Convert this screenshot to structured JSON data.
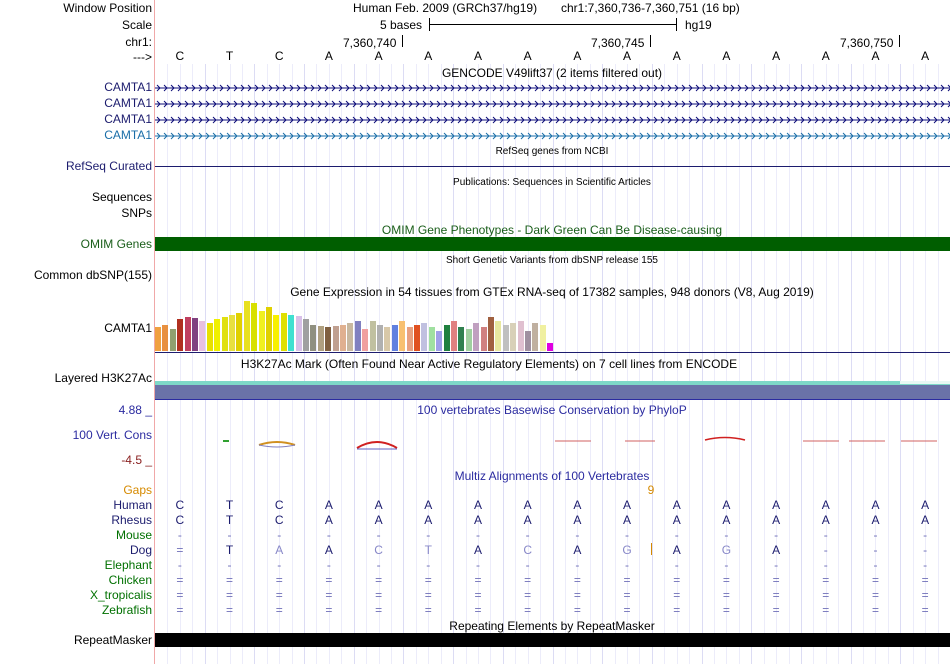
{
  "labels": {
    "window_position": "Window Position",
    "scale": "Scale",
    "chrom": "chr1:",
    "arrow": "--->",
    "camta1_rows": [
      "CAMTA1",
      "CAMTA1",
      "CAMTA1",
      "CAMTA1"
    ],
    "refseq": "RefSeq Curated",
    "sequences": "Sequences",
    "snps": "SNPs",
    "omim": "OMIM Genes",
    "dbsnp": "Common dbSNP(155)",
    "gtex": "CAMTA1",
    "h3k27ac": "Layered H3K27Ac",
    "cons_max": "4.88 _",
    "cons": "100 Vert. Cons",
    "cons_min": "-4.5 _",
    "gaps": "Gaps",
    "species": [
      "Human",
      "Rhesus",
      "Mouse",
      "Dog",
      "Elephant",
      "Chicken",
      "X_tropicalis",
      "Zebrafish"
    ],
    "repeatmasker": "RepeatMasker"
  },
  "header": {
    "assembly": "Human Feb. 2009 (GRCh37/hg19)",
    "position": "chr1:7,360,736-7,360,751 (16 bp)",
    "scale_left": "5 bases",
    "scale_right": "hg19",
    "ticks": [
      "7,360,740",
      "7,360,745",
      "7,360,750"
    ]
  },
  "sequence": [
    "C",
    "T",
    "C",
    "A",
    "A",
    "A",
    "A",
    "A",
    "A",
    "A",
    "A",
    "A",
    "A",
    "A",
    "A",
    "A"
  ],
  "tracks": {
    "gencode": "GENCODE V49lift37 (2 items filtered out)",
    "refseq": "RefSeq genes from NCBI",
    "pubs": "Publications: Sequences in Scientific Articles",
    "omim": "OMIM Gene Phenotypes - Dark Green Can Be Disease-causing",
    "dbsnp": "Short Genetic Variants from dbSNP release 155",
    "gtex": "Gene Expression in 54 tissues from GTEx RNA-seq of 17382 samples, 948 donors (V8, Aug 2019)",
    "h3k27ac": "H3K27Ac Mark (Often Found Near Active Regulatory Elements) on 7 cell lines from ENCODE",
    "phylop": "100 vertebrates Basewise Conservation by PhyloP",
    "multiz": "Multiz Alignments of 100 Vertebrates",
    "repeatmasker": "Repeating Elements by RepeatMasker",
    "gap_marker": "9"
  },
  "alignments": [
    [
      "C",
      "T",
      "C",
      "A",
      "A",
      "A",
      "A",
      "A",
      "A",
      "A",
      "A",
      "A",
      "A",
      "A",
      "A",
      "A"
    ],
    [
      "C",
      "T",
      "C",
      "A",
      "A",
      "A",
      "A",
      "A",
      "A",
      "A",
      "A",
      "A",
      "A",
      "A",
      "A",
      "A"
    ],
    [
      "-",
      "-",
      "-",
      "-",
      "-",
      "-",
      "-",
      "-",
      "-",
      "-",
      "-",
      "-",
      "-",
      "-",
      "-",
      "-"
    ],
    [
      "=",
      "T",
      "A",
      "A",
      "C",
      "T",
      "A",
      "C",
      "A",
      "G",
      "A",
      "G",
      "A",
      "-",
      "-",
      "-"
    ],
    [
      "-",
      "-",
      "-",
      "-",
      "-",
      "-",
      "-",
      "-",
      "-",
      "-",
      "-",
      "-",
      "-",
      "-",
      "-",
      "-"
    ],
    [
      "=",
      "=",
      "=",
      "=",
      "=",
      "=",
      "=",
      "=",
      "=",
      "=",
      "=",
      "=",
      "=",
      "=",
      "=",
      "="
    ],
    [
      "=",
      "=",
      "=",
      "=",
      "=",
      "=",
      "=",
      "=",
      "=",
      "=",
      "=",
      "=",
      "=",
      "=",
      "=",
      "="
    ],
    [
      "=",
      "=",
      "=",
      "=",
      "=",
      "=",
      "=",
      "=",
      "=",
      "=",
      "=",
      "=",
      "=",
      "=",
      "=",
      "="
    ]
  ],
  "gtex_values": [
    24,
    26,
    22,
    32,
    34,
    33,
    30,
    28,
    32,
    34,
    36,
    38,
    50,
    48,
    40,
    44,
    36,
    38,
    36,
    35,
    32,
    26,
    25,
    24,
    25,
    26,
    28,
    30,
    22,
    30,
    26,
    24,
    26,
    30,
    24,
    26,
    28,
    24,
    20,
    26,
    30,
    24,
    22,
    28,
    24,
    34,
    30,
    26,
    28,
    30,
    20,
    28,
    26,
    8
  ],
  "colors": {
    "camta_dark": "#0c0c78",
    "camta_light": "#1a6ea8",
    "omim_green": "#005e00",
    "omim_text": "#1a5e1a",
    "label_blue": "#1c1c6e",
    "h3k_slate": "#6a72a8",
    "h3k_teal": "#7ed8c8",
    "cons_max_color": "#2b2ba0",
    "cons_min_color": "#8a2020",
    "gaps_orange": "#d68a00",
    "species_green": "#007000"
  }
}
